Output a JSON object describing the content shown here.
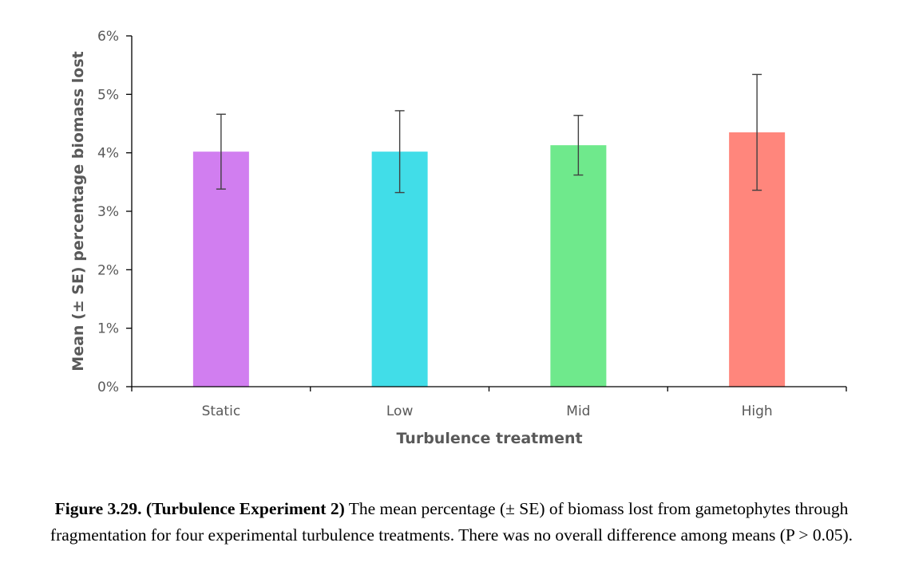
{
  "chart_data": {
    "type": "bar",
    "categories": [
      "Static",
      "Low",
      "Mid",
      "High"
    ],
    "values": [
      4.02,
      4.02,
      4.13,
      4.35
    ],
    "errors": [
      0.64,
      0.7,
      0.51,
      0.99
    ],
    "colors": [
      "#d17ef0",
      "#41dde8",
      "#6fe98c",
      "#ff867c"
    ],
    "xlabel": "Turbulence treatment",
    "ylabel": "Mean (± SE) percentage biomass lost",
    "ylim": [
      0,
      6
    ],
    "yticks": [
      0,
      1,
      2,
      3,
      4,
      5,
      6
    ],
    "ytick_labels": [
      "0%",
      "1%",
      "2%",
      "3%",
      "4%",
      "5%",
      "6%"
    ],
    "grid": false,
    "legend": "none"
  },
  "caption": {
    "label": "Figure 3.29. (Turbulence Experiment 2)",
    "text": " The mean percentage (± SE) of biomass lost from gametophytes through fragmentation for four experimental turbulence treatments. There was no overall difference among means (P > 0.05)."
  }
}
